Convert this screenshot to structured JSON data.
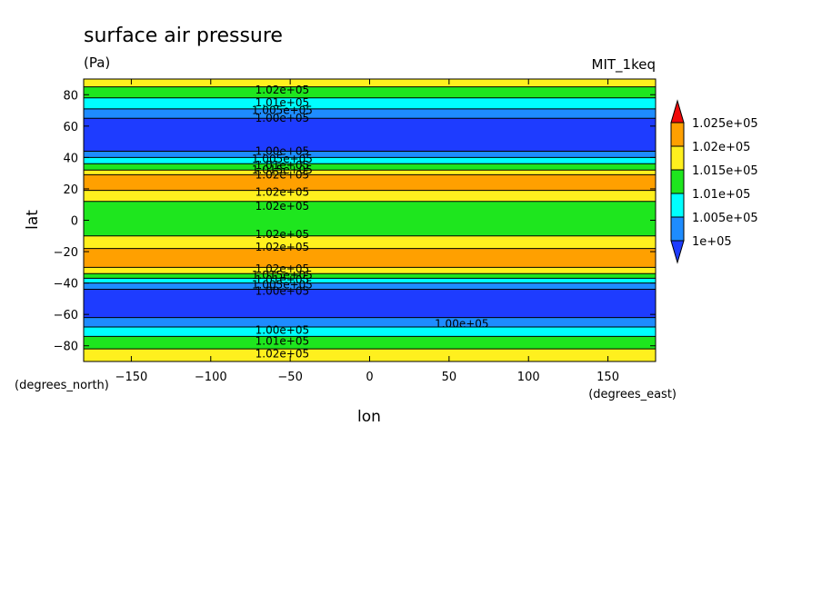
{
  "chart_data": {
    "type": "heatmap",
    "subtype": "filled-contour",
    "title": "surface air pressure",
    "units": "(Pa)",
    "model_label": "MIT_1keq",
    "xlabel": "lon",
    "ylabel": "lat",
    "x_unit_label": "(degrees_east)",
    "y_unit_label": "(degrees_north)",
    "xlim": [
      -180,
      180
    ],
    "ylim": [
      -90,
      90
    ],
    "x_ticks": [
      -150,
      -100,
      -50,
      0,
      50,
      100,
      150
    ],
    "x_tick_labels": [
      "−150",
      "−100",
      "−50",
      "0",
      "50",
      "100",
      "150"
    ],
    "y_ticks": [
      80,
      60,
      40,
      20,
      0,
      -20,
      -40,
      -60,
      -80
    ],
    "y_tick_labels": [
      "80",
      "60",
      "40",
      "20",
      "0",
      "−20",
      "−40",
      "−60",
      "−80"
    ],
    "colorbar": {
      "levels": [
        "1.025e+05",
        "1.02e+05",
        "1.015e+05",
        "1.01e+05",
        "1.005e+05",
        "1e+05"
      ],
      "level_values": [
        102500,
        102000,
        101500,
        101000,
        100500,
        100000
      ],
      "colors": [
        "#f00a0a",
        "#ffa000",
        "#fff01e",
        "#1ee61e",
        "#00ffff",
        "#1e8cff",
        "#1e3cff"
      ],
      "extend": "both"
    },
    "zonal_bands": [
      {
        "lat_from": 90,
        "lat_to": 85,
        "color": "#fff01e"
      },
      {
        "lat_from": 85,
        "lat_to": 78,
        "color": "#1ee61e"
      },
      {
        "lat_from": 78,
        "lat_to": 71,
        "color": "#00ffff"
      },
      {
        "lat_from": 71,
        "lat_to": 65,
        "color": "#1e8cff"
      },
      {
        "lat_from": 65,
        "lat_to": 44,
        "color": "#1e3cff"
      },
      {
        "lat_from": 44,
        "lat_to": 40,
        "color": "#1e8cff"
      },
      {
        "lat_from": 40,
        "lat_to": 36,
        "color": "#00ffff"
      },
      {
        "lat_from": 36,
        "lat_to": 32,
        "color": "#1ee61e"
      },
      {
        "lat_from": 32,
        "lat_to": 29,
        "color": "#fff01e"
      },
      {
        "lat_from": 29,
        "lat_to": 19,
        "color": "#ffa000"
      },
      {
        "lat_from": 19,
        "lat_to": 12,
        "color": "#fff01e"
      },
      {
        "lat_from": 12,
        "lat_to": -10,
        "color": "#1ee61e"
      },
      {
        "lat_from": -10,
        "lat_to": -18,
        "color": "#fff01e"
      },
      {
        "lat_from": -18,
        "lat_to": -30,
        "color": "#ffa000"
      },
      {
        "lat_from": -30,
        "lat_to": -34,
        "color": "#fff01e"
      },
      {
        "lat_from": -34,
        "lat_to": -37,
        "color": "#1ee61e"
      },
      {
        "lat_from": -37,
        "lat_to": -40,
        "color": "#00ffff"
      },
      {
        "lat_from": -40,
        "lat_to": -44,
        "color": "#1e8cff"
      },
      {
        "lat_from": -44,
        "lat_to": -62,
        "color": "#1e3cff"
      },
      {
        "lat_from": -62,
        "lat_to": -68,
        "color": "#1e8cff"
      },
      {
        "lat_from": -68,
        "lat_to": -74,
        "color": "#00ffff"
      },
      {
        "lat_from": -74,
        "lat_to": -82,
        "color": "#1ee61e"
      },
      {
        "lat_from": -82,
        "lat_to": -90,
        "color": "#fff01e"
      }
    ],
    "contour_labels": [
      {
        "text": "1.02e+05",
        "lon": -55,
        "lat": 83
      },
      {
        "text": "1.01e+05",
        "lon": -55,
        "lat": 75
      },
      {
        "text": "1.005e+05",
        "lon": -55,
        "lat": 70
      },
      {
        "text": "1.00e+05",
        "lon": -55,
        "lat": 65
      },
      {
        "text": "1.00e+05",
        "lon": -55,
        "lat": 44
      },
      {
        "text": "1.005e+05",
        "lon": -55,
        "lat": 39
      },
      {
        "text": "1.01e+05",
        "lon": -55,
        "lat": 35
      },
      {
        "text": "1.015e+05",
        "lon": -55,
        "lat": 32
      },
      {
        "text": "1.02e+05",
        "lon": -55,
        "lat": 29
      },
      {
        "text": "1.02e+05",
        "lon": -55,
        "lat": 18
      },
      {
        "text": "1.02e+05",
        "lon": -55,
        "lat": 9
      },
      {
        "text": "1.02e+05",
        "lon": -55,
        "lat": -9
      },
      {
        "text": "1.02e+05",
        "lon": -55,
        "lat": -17
      },
      {
        "text": "1.02e+05",
        "lon": -55,
        "lat": -31
      },
      {
        "text": "1.015e+05",
        "lon": -55,
        "lat": -35
      },
      {
        "text": "1.01e+05",
        "lon": -55,
        "lat": -38
      },
      {
        "text": "1.005e+05",
        "lon": -55,
        "lat": -41
      },
      {
        "text": "1.00e+05",
        "lon": -55,
        "lat": -45
      },
      {
        "text": "1.00e+05",
        "lon": -55,
        "lat": -70
      },
      {
        "text": "1.01e+05",
        "lon": -55,
        "lat": -77
      },
      {
        "text": "1.02e+05",
        "lon": -55,
        "lat": -85
      },
      {
        "text": "1.00e+05",
        "lon": 58,
        "lat": -66
      }
    ]
  }
}
